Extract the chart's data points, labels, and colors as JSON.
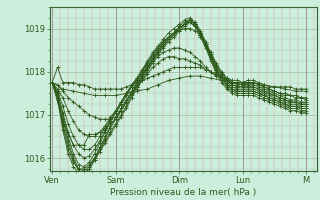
{
  "bg_color": "#cceedd",
  "line_color": "#2d5a1b",
  "ylabel_ticks": [
    1016,
    1017,
    1018,
    1019
  ],
  "xlabels": [
    "Ven",
    "Sam",
    "Dim",
    "Lun",
    "M"
  ],
  "major_xtick_positions": [
    0,
    48,
    96,
    144,
    192
  ],
  "xlabel": "Pression niveau de la mer( hPa )",
  "ylim": [
    1015.7,
    1019.5
  ],
  "xlim": [
    -2,
    200
  ],
  "series": [
    [
      0,
      1017.75,
      4,
      1018.1,
      8,
      1017.75,
      12,
      1017.75,
      16,
      1017.75,
      20,
      1017.7,
      24,
      1017.7,
      28,
      1017.65,
      32,
      1017.6,
      36,
      1017.6,
      40,
      1017.6,
      44,
      1017.6,
      48,
      1017.6,
      52,
      1017.6,
      56,
      1017.65,
      60,
      1017.7,
      64,
      1017.75,
      68,
      1017.8,
      72,
      1017.85,
      76,
      1017.9,
      80,
      1017.95,
      84,
      1018.0,
      88,
      1018.05,
      92,
      1018.1,
      96,
      1018.1,
      100,
      1018.1,
      104,
      1018.1,
      108,
      1018.1,
      112,
      1018.1,
      116,
      1018.05,
      120,
      1018.0,
      124,
      1017.95,
      128,
      1017.9,
      132,
      1017.85,
      136,
      1017.8,
      140,
      1017.8,
      144,
      1017.75,
      148,
      1017.8,
      152,
      1017.8,
      156,
      1017.75,
      160,
      1017.7,
      164,
      1017.65,
      168,
      1017.65,
      172,
      1017.65,
      176,
      1017.65,
      180,
      1017.65,
      184,
      1017.6,
      188,
      1017.6,
      192,
      1017.6
    ],
    [
      0,
      1017.75,
      8,
      1017.6,
      16,
      1017.55,
      24,
      1017.5,
      32,
      1017.45,
      40,
      1017.45,
      48,
      1017.45,
      56,
      1017.5,
      64,
      1017.55,
      72,
      1017.6,
      80,
      1017.7,
      88,
      1017.8,
      96,
      1017.85,
      104,
      1017.9,
      112,
      1017.9,
      120,
      1017.85,
      128,
      1017.8,
      136,
      1017.75,
      144,
      1017.7,
      152,
      1017.75,
      160,
      1017.7,
      168,
      1017.65,
      176,
      1017.6,
      184,
      1017.55,
      192,
      1017.55
    ],
    [
      0,
      1017.75,
      4,
      1017.7,
      8,
      1017.55,
      12,
      1017.4,
      16,
      1017.3,
      20,
      1017.2,
      24,
      1017.1,
      28,
      1017.0,
      32,
      1016.95,
      36,
      1016.9,
      40,
      1016.9,
      44,
      1016.9,
      48,
      1016.95,
      52,
      1017.1,
      56,
      1017.3,
      60,
      1017.5,
      64,
      1017.65,
      68,
      1017.8,
      72,
      1017.95,
      76,
      1018.1,
      80,
      1018.2,
      84,
      1018.3,
      88,
      1018.35,
      92,
      1018.35,
      96,
      1018.3,
      100,
      1018.3,
      104,
      1018.25,
      108,
      1018.2,
      112,
      1018.15,
      116,
      1018.05,
      120,
      1018.0,
      124,
      1017.9,
      128,
      1017.85,
      132,
      1017.8,
      136,
      1017.75,
      140,
      1017.75,
      144,
      1017.75,
      148,
      1017.75,
      152,
      1017.75,
      156,
      1017.7,
      160,
      1017.65,
      164,
      1017.6,
      168,
      1017.55,
      172,
      1017.5,
      176,
      1017.5,
      180,
      1017.45,
      184,
      1017.45,
      188,
      1017.4,
      192,
      1017.4
    ],
    [
      0,
      1017.75,
      4,
      1017.6,
      8,
      1017.4,
      12,
      1017.1,
      16,
      1016.85,
      20,
      1016.65,
      24,
      1016.55,
      28,
      1016.5,
      32,
      1016.5,
      36,
      1016.6,
      40,
      1016.75,
      44,
      1016.95,
      48,
      1017.1,
      52,
      1017.3,
      56,
      1017.5,
      60,
      1017.65,
      64,
      1017.8,
      68,
      1017.95,
      72,
      1018.1,
      76,
      1018.25,
      80,
      1018.35,
      84,
      1018.45,
      88,
      1018.5,
      92,
      1018.55,
      96,
      1018.55,
      100,
      1018.5,
      104,
      1018.45,
      108,
      1018.35,
      112,
      1018.25,
      116,
      1018.1,
      120,
      1018.0,
      124,
      1017.9,
      128,
      1017.85,
      132,
      1017.8,
      136,
      1017.75,
      140,
      1017.75,
      144,
      1017.75,
      148,
      1017.75,
      152,
      1017.75,
      156,
      1017.7,
      160,
      1017.65,
      164,
      1017.6,
      168,
      1017.55,
      172,
      1017.5,
      176,
      1017.45,
      180,
      1017.45,
      184,
      1017.4,
      188,
      1017.4,
      192,
      1017.35
    ],
    [
      0,
      1017.75,
      4,
      1017.55,
      8,
      1017.2,
      12,
      1016.8,
      16,
      1016.5,
      20,
      1016.3,
      24,
      1016.2,
      28,
      1016.2,
      32,
      1016.3,
      36,
      1016.5,
      40,
      1016.7,
      44,
      1016.9,
      48,
      1017.1,
      52,
      1017.3,
      56,
      1017.5,
      60,
      1017.7,
      64,
      1017.85,
      68,
      1018.05,
      72,
      1018.2,
      76,
      1018.4,
      80,
      1018.55,
      84,
      1018.7,
      88,
      1018.8,
      92,
      1018.9,
      96,
      1018.95,
      100,
      1019.0,
      104,
      1019.0,
      108,
      1018.95,
      112,
      1018.85,
      116,
      1018.65,
      120,
      1018.45,
      124,
      1018.2,
      128,
      1018.0,
      132,
      1017.85,
      136,
      1017.75,
      140,
      1017.7,
      144,
      1017.7,
      148,
      1017.7,
      152,
      1017.7,
      156,
      1017.65,
      160,
      1017.6,
      164,
      1017.55,
      168,
      1017.5,
      172,
      1017.45,
      176,
      1017.4,
      180,
      1017.35,
      184,
      1017.35,
      188,
      1017.3,
      192,
      1017.3
    ],
    [
      0,
      1017.75,
      4,
      1017.5,
      8,
      1017.05,
      12,
      1016.6,
      16,
      1016.3,
      20,
      1016.1,
      24,
      1016.0,
      28,
      1016.05,
      32,
      1016.2,
      36,
      1016.4,
      40,
      1016.65,
      44,
      1016.85,
      48,
      1017.05,
      52,
      1017.25,
      56,
      1017.45,
      60,
      1017.65,
      64,
      1017.8,
      68,
      1018.0,
      72,
      1018.2,
      76,
      1018.4,
      80,
      1018.55,
      84,
      1018.7,
      88,
      1018.8,
      92,
      1018.9,
      96,
      1019.0,
      100,
      1019.1,
      104,
      1019.15,
      108,
      1019.05,
      112,
      1018.9,
      116,
      1018.65,
      120,
      1018.4,
      124,
      1018.15,
      128,
      1017.95,
      132,
      1017.8,
      136,
      1017.7,
      140,
      1017.65,
      144,
      1017.65,
      148,
      1017.65,
      152,
      1017.65,
      156,
      1017.6,
      160,
      1017.55,
      164,
      1017.5,
      168,
      1017.45,
      172,
      1017.4,
      176,
      1017.35,
      180,
      1017.3,
      184,
      1017.3,
      188,
      1017.25,
      192,
      1017.25
    ],
    [
      0,
      1017.75,
      4,
      1017.5,
      8,
      1017.0,
      12,
      1016.5,
      16,
      1016.1,
      20,
      1015.85,
      24,
      1015.8,
      28,
      1015.9,
      32,
      1016.1,
      36,
      1016.35,
      40,
      1016.6,
      44,
      1016.85,
      48,
      1017.05,
      52,
      1017.25,
      56,
      1017.45,
      60,
      1017.65,
      64,
      1017.85,
      68,
      1018.05,
      72,
      1018.25,
      76,
      1018.45,
      80,
      1018.6,
      84,
      1018.75,
      88,
      1018.9,
      92,
      1019.0,
      96,
      1019.1,
      100,
      1019.2,
      104,
      1019.25,
      108,
      1019.15,
      112,
      1018.95,
      116,
      1018.7,
      120,
      1018.4,
      124,
      1018.15,
      128,
      1017.95,
      132,
      1017.8,
      136,
      1017.7,
      140,
      1017.65,
      144,
      1017.65,
      148,
      1017.65,
      152,
      1017.65,
      156,
      1017.6,
      160,
      1017.55,
      164,
      1017.5,
      168,
      1017.45,
      172,
      1017.4,
      176,
      1017.35,
      180,
      1017.3,
      184,
      1017.3,
      188,
      1017.25,
      192,
      1017.25
    ],
    [
      0,
      1017.75,
      4,
      1017.45,
      8,
      1016.9,
      12,
      1016.4,
      16,
      1016.0,
      20,
      1015.75,
      24,
      1015.7,
      28,
      1015.8,
      32,
      1016.0,
      36,
      1016.25,
      40,
      1016.5,
      44,
      1016.75,
      48,
      1016.95,
      52,
      1017.15,
      56,
      1017.35,
      60,
      1017.55,
      64,
      1017.75,
      68,
      1017.95,
      72,
      1018.15,
      76,
      1018.35,
      80,
      1018.5,
      84,
      1018.65,
      88,
      1018.8,
      92,
      1018.9,
      96,
      1019.05,
      100,
      1019.15,
      104,
      1019.2,
      108,
      1019.1,
      112,
      1018.9,
      116,
      1018.65,
      120,
      1018.35,
      124,
      1018.1,
      128,
      1017.9,
      132,
      1017.75,
      136,
      1017.65,
      140,
      1017.6,
      144,
      1017.6,
      148,
      1017.6,
      152,
      1017.6,
      156,
      1017.55,
      160,
      1017.5,
      164,
      1017.45,
      168,
      1017.4,
      172,
      1017.35,
      176,
      1017.3,
      180,
      1017.25,
      184,
      1017.25,
      188,
      1017.2,
      192,
      1017.2
    ],
    [
      0,
      1017.75,
      4,
      1017.4,
      8,
      1016.8,
      12,
      1016.3,
      16,
      1015.95,
      20,
      1015.7,
      24,
      1015.65,
      28,
      1015.75,
      32,
      1015.95,
      36,
      1016.2,
      40,
      1016.45,
      44,
      1016.7,
      48,
      1016.9,
      52,
      1017.1,
      56,
      1017.3,
      60,
      1017.5,
      64,
      1017.7,
      68,
      1017.9,
      72,
      1018.1,
      76,
      1018.3,
      80,
      1018.45,
      84,
      1018.6,
      88,
      1018.75,
      92,
      1018.85,
      96,
      1019.0,
      100,
      1019.1,
      104,
      1019.2,
      108,
      1019.1,
      112,
      1018.9,
      116,
      1018.6,
      120,
      1018.3,
      124,
      1018.05,
      128,
      1017.85,
      132,
      1017.7,
      136,
      1017.6,
      140,
      1017.55,
      144,
      1017.55,
      148,
      1017.55,
      152,
      1017.55,
      156,
      1017.5,
      160,
      1017.45,
      164,
      1017.4,
      168,
      1017.35,
      172,
      1017.3,
      176,
      1017.25,
      180,
      1017.2,
      184,
      1017.2,
      188,
      1017.15,
      192,
      1017.15
    ],
    [
      0,
      1017.75,
      8,
      1016.85,
      16,
      1016.3,
      24,
      1016.3,
      28,
      1016.55,
      32,
      1016.55,
      36,
      1016.6,
      40,
      1016.7,
      44,
      1016.8,
      48,
      1016.9,
      52,
      1017.1,
      56,
      1017.3,
      60,
      1017.5,
      64,
      1017.7,
      68,
      1017.9,
      72,
      1018.1,
      76,
      1018.3,
      80,
      1018.5,
      84,
      1018.65,
      88,
      1018.8,
      92,
      1018.9,
      96,
      1019.0,
      100,
      1019.1,
      104,
      1019.2,
      108,
      1019.1,
      112,
      1018.9,
      116,
      1018.65,
      120,
      1018.35,
      124,
      1018.05,
      128,
      1017.85,
      132,
      1017.7,
      136,
      1017.6,
      140,
      1017.55,
      144,
      1017.55,
      148,
      1017.55,
      152,
      1017.55,
      156,
      1017.5,
      160,
      1017.45,
      164,
      1017.4,
      168,
      1017.35,
      172,
      1017.3,
      176,
      1017.25,
      180,
      1017.2,
      184,
      1017.2,
      188,
      1017.15,
      192,
      1017.15
    ],
    [
      0,
      1017.75,
      4,
      1017.4,
      8,
      1016.75,
      12,
      1016.2,
      16,
      1015.9,
      20,
      1015.75,
      24,
      1015.75,
      28,
      1015.85,
      32,
      1016.0,
      36,
      1016.2,
      40,
      1016.4,
      44,
      1016.6,
      48,
      1016.8,
      52,
      1017.0,
      56,
      1017.2,
      60,
      1017.45,
      64,
      1017.65,
      68,
      1017.85,
      72,
      1018.05,
      76,
      1018.25,
      80,
      1018.45,
      84,
      1018.6,
      88,
      1018.75,
      92,
      1018.85,
      96,
      1019.0,
      100,
      1019.1,
      104,
      1019.2,
      108,
      1019.1,
      112,
      1018.85,
      116,
      1018.6,
      120,
      1018.3,
      124,
      1018.0,
      128,
      1017.8,
      132,
      1017.65,
      136,
      1017.55,
      140,
      1017.5,
      144,
      1017.5,
      148,
      1017.5,
      152,
      1017.5,
      156,
      1017.45,
      160,
      1017.4,
      164,
      1017.35,
      168,
      1017.3,
      172,
      1017.25,
      176,
      1017.2,
      180,
      1017.15,
      184,
      1017.15,
      188,
      1017.1,
      192,
      1017.1
    ],
    [
      0,
      1017.75,
      4,
      1017.35,
      8,
      1016.65,
      12,
      1016.1,
      16,
      1015.8,
      20,
      1015.65,
      24,
      1015.65,
      28,
      1015.75,
      32,
      1015.95,
      36,
      1016.15,
      40,
      1016.35,
      44,
      1016.55,
      48,
      1016.75,
      52,
      1016.95,
      56,
      1017.15,
      60,
      1017.4,
      64,
      1017.6,
      68,
      1017.8,
      72,
      1018.0,
      76,
      1018.2,
      80,
      1018.4,
      84,
      1018.55,
      88,
      1018.7,
      92,
      1018.8,
      96,
      1018.95,
      100,
      1019.05,
      104,
      1019.15,
      108,
      1019.05,
      112,
      1018.8,
      116,
      1018.55,
      120,
      1018.25,
      124,
      1017.95,
      128,
      1017.75,
      132,
      1017.6,
      136,
      1017.5,
      140,
      1017.45,
      144,
      1017.45,
      148,
      1017.45,
      152,
      1017.45,
      156,
      1017.4,
      160,
      1017.35,
      164,
      1017.3,
      168,
      1017.25,
      172,
      1017.2,
      176,
      1017.15,
      180,
      1017.1,
      184,
      1017.1,
      188,
      1017.05,
      192,
      1017.05
    ]
  ],
  "minor_xtick_interval": 6,
  "minor_ytick_interval": 0.25
}
